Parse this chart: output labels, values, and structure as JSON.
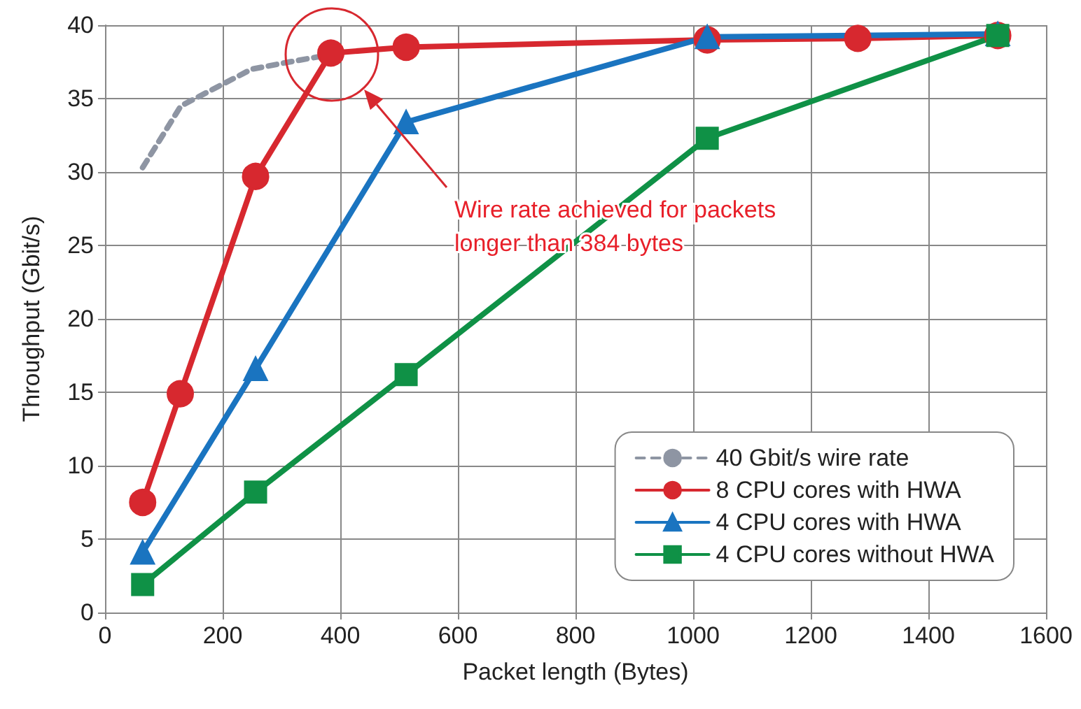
{
  "chart_data": {
    "type": "line",
    "xlabel": "Packet length (Bytes)",
    "ylabel": "Throughput (Gbit/s)",
    "xlim": [
      0,
      1600
    ],
    "xticks": [
      0,
      200,
      400,
      600,
      800,
      1000,
      1200,
      1400,
      1600
    ],
    "ylim": [
      0,
      40
    ],
    "yticks": [
      0,
      5,
      10,
      15,
      20,
      25,
      30,
      35,
      40
    ],
    "grid": true,
    "legend": "bottom right",
    "series": [
      {
        "name": "40 Gbit/s wire rate",
        "color": "#8e95a3",
        "marker": "none",
        "line_style": "dashed",
        "x": [
          64,
          129,
          177,
          249,
          314,
          384
        ],
        "values": [
          30.3,
          34.5,
          35.5,
          37.0,
          37.5,
          38.0
        ]
      },
      {
        "name": "8 CPU cores with HWA",
        "color": "#d7282f",
        "marker": "circle",
        "line_style": "solid",
        "x": [
          64,
          128,
          256,
          384,
          512,
          1024,
          1280,
          1518
        ],
        "values": [
          7.5,
          14.9,
          29.7,
          38.1,
          38.5,
          39.0,
          39.1,
          39.3
        ]
      },
      {
        "name": "4 CPU cores with HWA",
        "color": "#1a74c0",
        "marker": "triangle",
        "line_style": "solid",
        "x": [
          64,
          256,
          512,
          1024,
          1518
        ],
        "values": [
          4.1,
          16.6,
          33.4,
          39.2,
          39.4
        ]
      },
      {
        "name": "4 CPU cores without HWA",
        "color": "#0f9146",
        "marker": "square",
        "line_style": "solid",
        "x": [
          64,
          256,
          512,
          1024,
          1518
        ],
        "values": [
          1.9,
          8.2,
          16.2,
          32.3,
          39.3
        ]
      }
    ],
    "annotations": [
      "Wire rate achieved for packets\nlonger than 384 bytes"
    ]
  }
}
